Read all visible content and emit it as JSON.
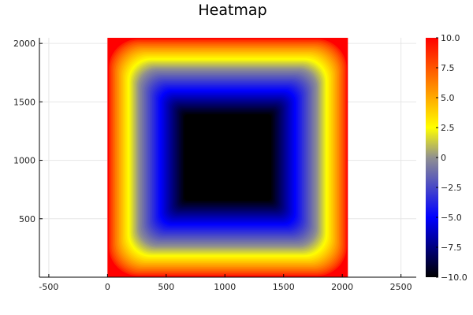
{
  "chart_data": {
    "type": "heatmap",
    "title": "Heatmap",
    "xlabel": "",
    "ylabel": "",
    "xlim": [
      -580,
      2630
    ],
    "ylim": [
      0,
      2048
    ],
    "x_ticks": [
      -500,
      0,
      500,
      1000,
      1500,
      2000,
      2500
    ],
    "x_tick_labels": [
      "-500",
      "0",
      "500",
      "1000",
      "1500",
      "2000",
      "2500"
    ],
    "y_ticks": [
      500,
      1000,
      1500,
      2000
    ],
    "y_tick_labels": [
      "500",
      "1000",
      "1500",
      "2000"
    ],
    "data_extent": {
      "x": [
        0,
        2048
      ],
      "y": [
        0,
        2048
      ]
    },
    "grid": true,
    "colorbar": {
      "range": [
        -10,
        10
      ],
      "ticks": [
        10,
        7.5,
        5,
        2.5,
        0,
        -2.5,
        -5,
        -7.5,
        -10
      ],
      "tick_labels": [
        "10.0",
        "7.5",
        "5.0",
        "2.5",
        "0",
        "−2.5",
        "−5.0",
        "−7.5",
        "−10.0"
      ],
      "colormap": "heat",
      "colormap_stops": [
        {
          "value": -10,
          "color": "#000000"
        },
        {
          "value": -5,
          "color": "#0000ff"
        },
        {
          "value": 0,
          "color": "#909090"
        },
        {
          "value": 2.5,
          "color": "#ffff00"
        },
        {
          "value": 10,
          "color": "#ff0000"
        }
      ]
    },
    "field": {
      "description_of_values": "≈ -10 in interior, rising to +10 at all four edges",
      "min": -10,
      "max": 10
    }
  }
}
